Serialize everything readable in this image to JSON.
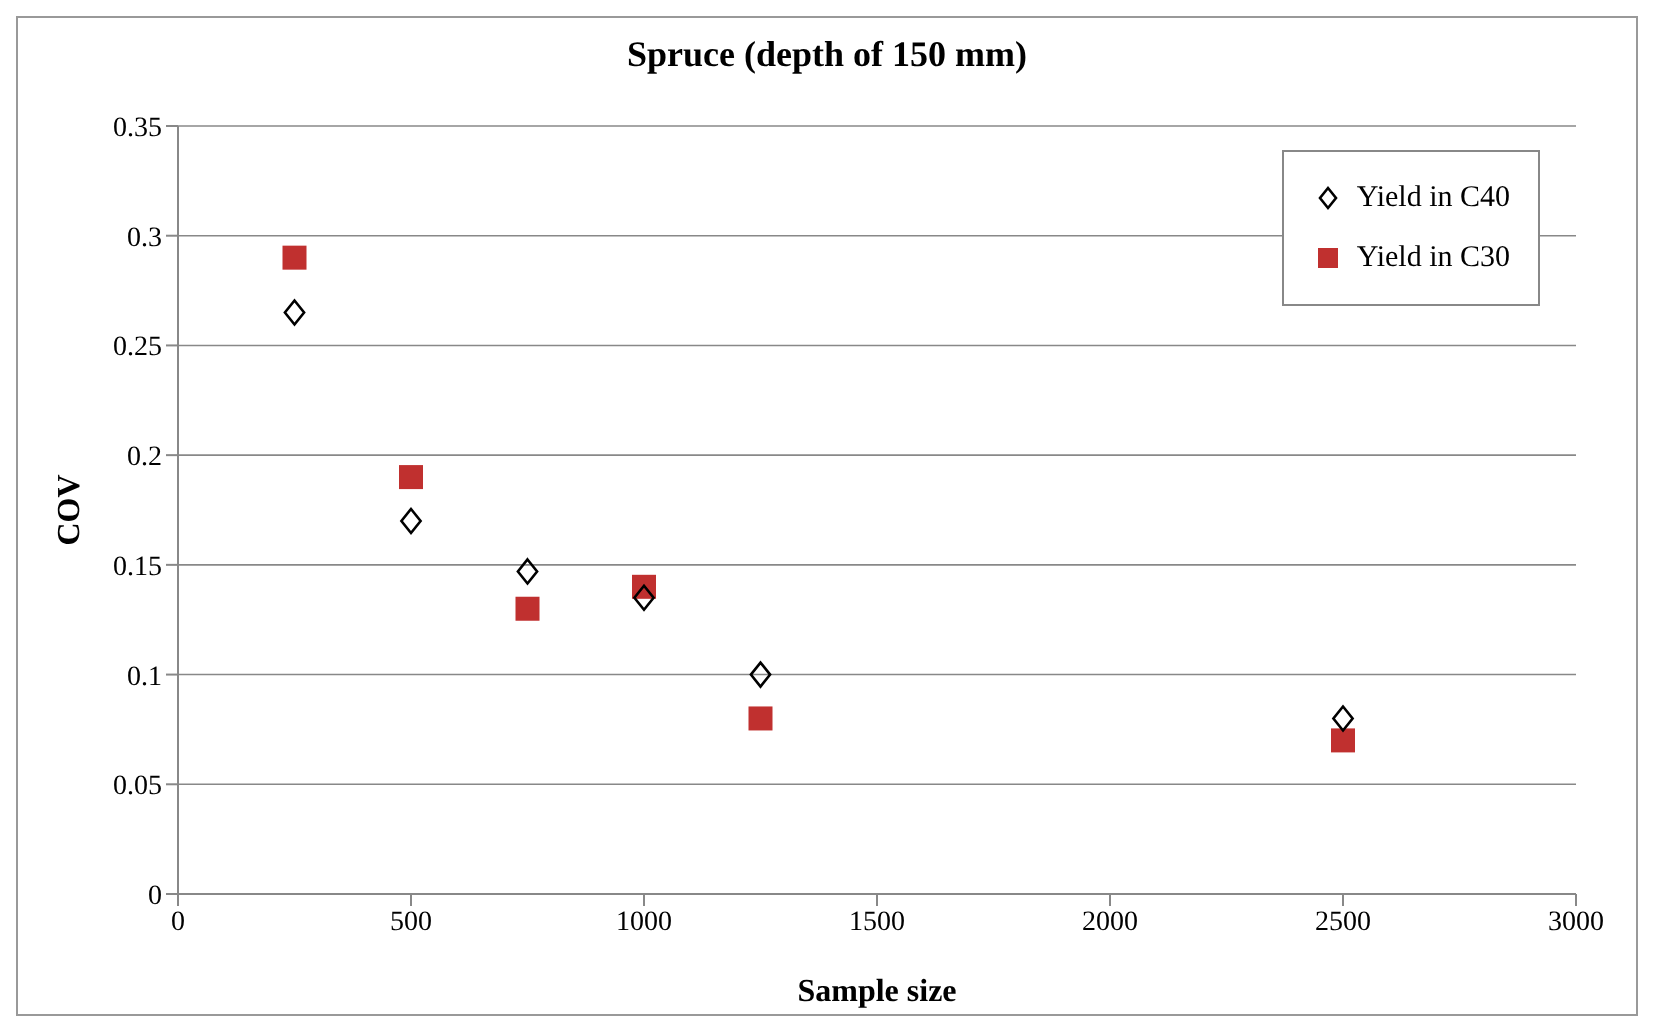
{
  "chart_data": {
    "type": "scatter",
    "title": "Spruce (depth of 150 mm)",
    "xlabel": "Sample size",
    "ylabel": "COV",
    "x": [
      250,
      500,
      750,
      1000,
      1250,
      2500
    ],
    "series": [
      {
        "name": "Yield in C40",
        "color": "#000000",
        "marker": "diamond",
        "values": [
          0.265,
          0.17,
          0.147,
          0.135,
          0.1,
          0.08
        ]
      },
      {
        "name": "Yield in C30",
        "color": "#c0302f",
        "marker": "square",
        "values": [
          0.29,
          0.19,
          0.13,
          0.14,
          0.08,
          0.07
        ]
      }
    ],
    "xlim": [
      0,
      3000
    ],
    "xticks": [
      0,
      500,
      1000,
      1500,
      2000,
      2500,
      3000
    ],
    "ylim": [
      0,
      0.35
    ],
    "yticks": [
      0,
      0.05,
      0.1,
      0.15,
      0.2,
      0.25,
      0.3,
      0.35
    ],
    "grid": "y",
    "legend": "top right"
  }
}
